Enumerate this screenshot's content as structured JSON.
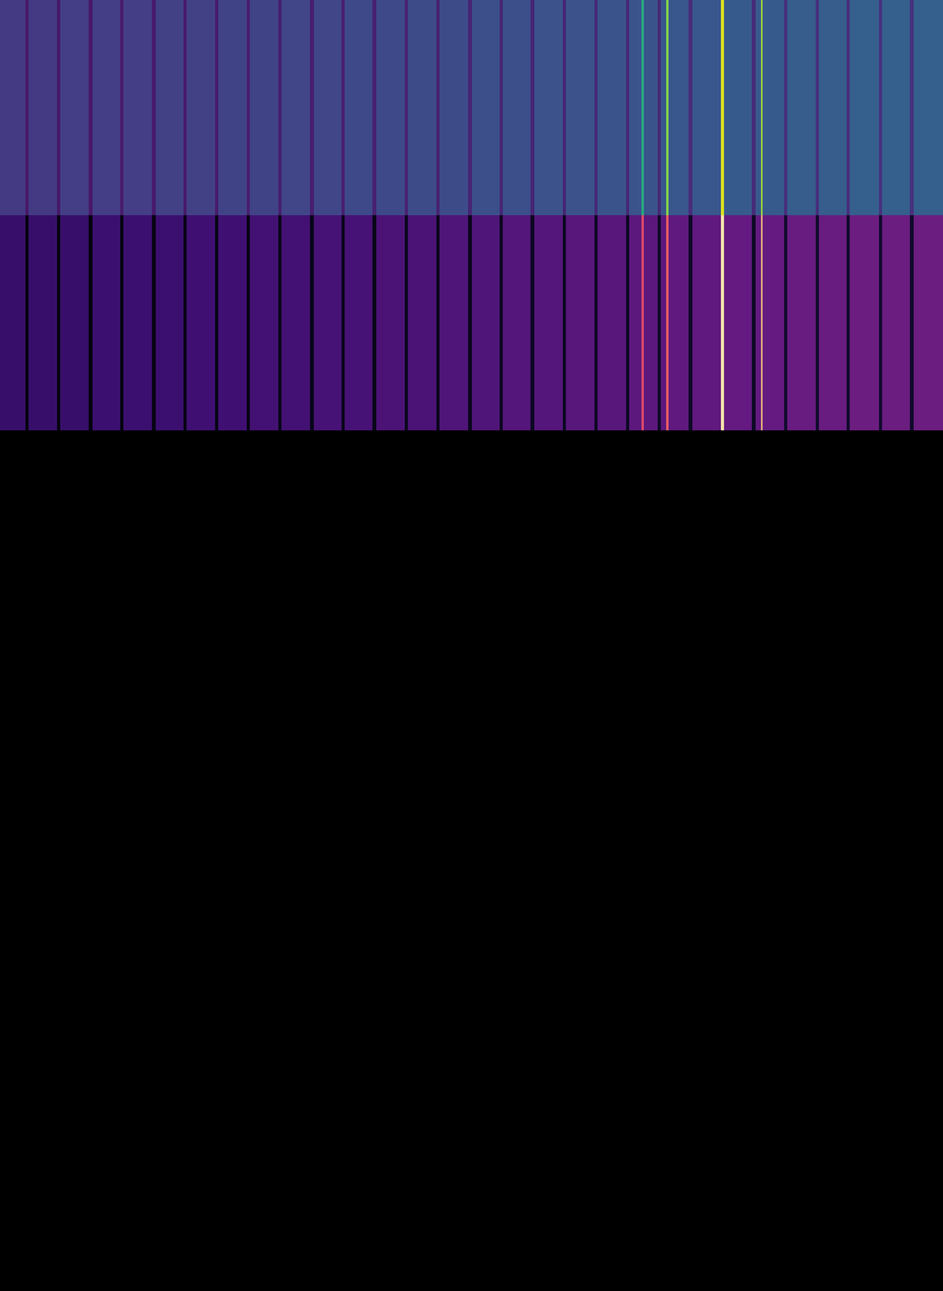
{
  "chart_data": [
    {
      "type": "heatmap",
      "tick_labels": false,
      "xlim": [
        0,
        1146
      ],
      "zlim": [
        0,
        1
      ],
      "x": [
        0,
        31,
        35,
        69,
        73,
        108,
        112,
        146,
        150,
        185,
        189,
        223,
        227,
        261,
        265,
        300,
        304,
        338,
        342,
        377,
        381,
        415,
        419,
        453,
        457,
        492,
        496,
        530,
        534,
        569,
        573,
        607,
        611,
        645,
        649,
        684,
        688,
        722,
        726,
        761,
        765,
        780,
        782,
        799,
        803,
        810,
        812,
        837,
        841,
        876,
        880,
        914,
        918,
        925,
        927,
        953,
        957,
        991,
        995,
        1029,
        1033,
        1068,
        1072,
        1106,
        1110,
        1146
      ],
      "z": [
        [
          0.17,
          0.06,
          0.17,
          0.06,
          0.18,
          0.06,
          0.18,
          0.07,
          0.18,
          0.07,
          0.19,
          0.07,
          0.19,
          0.07,
          0.2,
          0.08,
          0.2,
          0.08,
          0.21,
          0.08,
          0.21,
          0.08,
          0.22,
          0.09,
          0.22,
          0.09,
          0.23,
          0.09,
          0.23,
          0.1,
          0.24,
          0.1,
          0.24,
          0.1,
          0.25,
          0.1,
          0.25,
          0.11,
          0.26,
          0.11,
          0.26,
          0.62,
          0.26,
          0.11,
          0.27,
          0.82,
          0.27,
          0.12,
          0.27,
          0.95,
          0.28,
          0.12,
          0.28,
          0.86,
          0.28,
          0.13,
          0.29,
          0.13,
          0.29,
          0.13,
          0.3,
          0.14,
          0.3,
          0.14,
          0.3
        ]
      ]
    },
    {
      "type": "heatmap",
      "tick_labels": false,
      "xlim": [
        0,
        1146
      ],
      "zlim": [
        0,
        1
      ],
      "x": [
        0,
        31,
        35,
        69,
        73,
        108,
        112,
        146,
        150,
        185,
        189,
        223,
        227,
        261,
        265,
        300,
        304,
        338,
        342,
        377,
        381,
        415,
        419,
        453,
        457,
        492,
        496,
        530,
        534,
        569,
        573,
        607,
        611,
        645,
        649,
        684,
        688,
        722,
        726,
        761,
        765,
        780,
        782,
        799,
        803,
        810,
        812,
        837,
        841,
        876,
        880,
        914,
        918,
        925,
        927,
        953,
        957,
        991,
        995,
        1029,
        1033,
        1068,
        1072,
        1106,
        1110,
        1146
      ],
      "z": [
        [
          0.19,
          0.02,
          0.19,
          0.02,
          0.19,
          0.02,
          0.2,
          0.02,
          0.2,
          0.03,
          0.2,
          0.03,
          0.21,
          0.03,
          0.21,
          0.03,
          0.22,
          0.04,
          0.22,
          0.04,
          0.23,
          0.04,
          0.23,
          0.04,
          0.24,
          0.05,
          0.24,
          0.05,
          0.25,
          0.05,
          0.25,
          0.05,
          0.26,
          0.06,
          0.26,
          0.06,
          0.27,
          0.06,
          0.27,
          0.06,
          0.28,
          0.6,
          0.28,
          0.07,
          0.28,
          0.66,
          0.29,
          0.07,
          0.29,
          0.95,
          0.3,
          0.07,
          0.3,
          0.85,
          0.3,
          0.08,
          0.31,
          0.08,
          0.31,
          0.08,
          0.32,
          0.08,
          0.32,
          0.08,
          0.32
        ]
      ]
    }
  ]
}
